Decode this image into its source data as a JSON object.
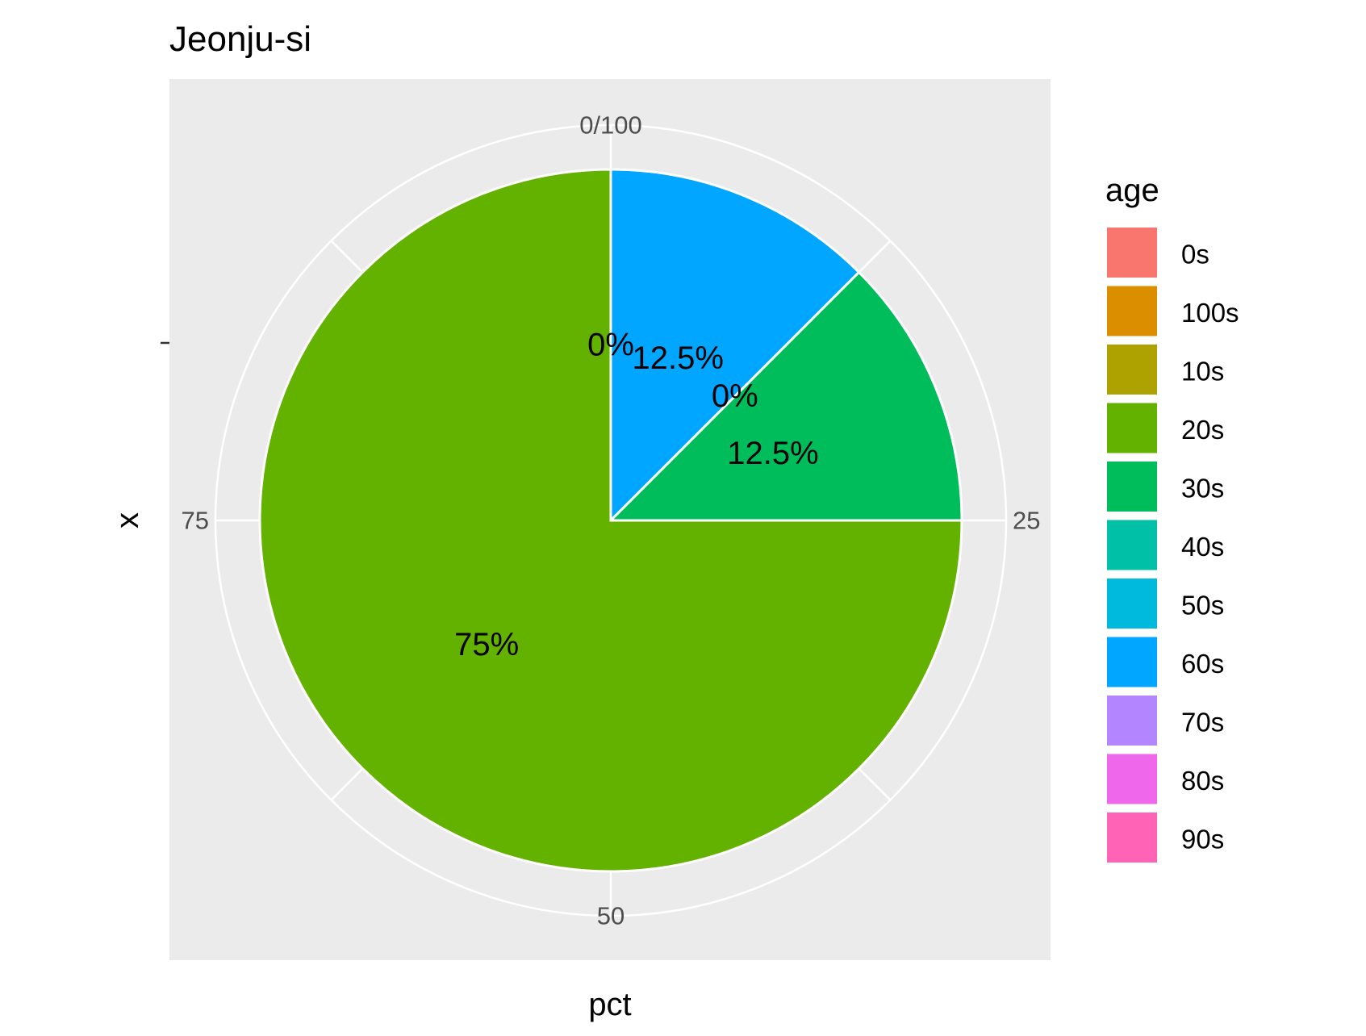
{
  "chart_data": {
    "type": "pie",
    "title": "Jeonju-si",
    "xlabel": "pct",
    "ylabel": "x",
    "theta_ticks": [
      "0/100",
      "25",
      "50",
      "75"
    ],
    "theta_range": [
      0,
      100
    ],
    "legend": {
      "title": "age",
      "position": "right",
      "entries": [
        {
          "label": "0s",
          "color": "#F8766D"
        },
        {
          "label": "100s",
          "color": "#DB8E00"
        },
        {
          "label": "10s",
          "color": "#AEA200"
        },
        {
          "label": "20s",
          "color": "#64B200"
        },
        {
          "label": "30s",
          "color": "#00BD5C"
        },
        {
          "label": "40s",
          "color": "#00C1A7"
        },
        {
          "label": "50s",
          "color": "#00BADE"
        },
        {
          "label": "60s",
          "color": "#00A6FF"
        },
        {
          "label": "70s",
          "color": "#B385FF"
        },
        {
          "label": "80s",
          "color": "#EF67EB"
        },
        {
          "label": "90s",
          "color": "#FF63B6"
        }
      ]
    },
    "slices": [
      {
        "category": "60s",
        "value": 12.5,
        "label": "12.5%",
        "color": "#00A6FF"
      },
      {
        "category": "30s",
        "value": 12.5,
        "label": "12.5%",
        "color": "#00BD5C"
      },
      {
        "category": "20s",
        "value": 75,
        "label": "75%",
        "color": "#64B200"
      }
    ],
    "zero_labels": [
      {
        "after_cumulative": 0,
        "label": "0%"
      },
      {
        "after_cumulative": 12.5,
        "label": "0%"
      }
    ],
    "grid": true,
    "panel_background": "#EBEBEB"
  }
}
